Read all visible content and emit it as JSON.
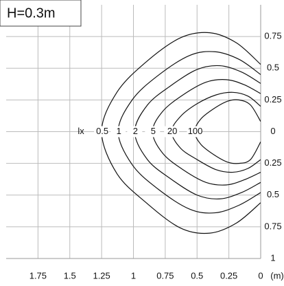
{
  "chart_data": {
    "type": "contour",
    "title": "H=0.3m",
    "unit_label": "lx",
    "x_unit_label": "(m)",
    "xlim": [
      2,
      0
    ],
    "ylim": [
      -1,
      1
    ],
    "xticks": [
      1.75,
      1.5,
      1.25,
      1,
      0.75,
      0.5,
      0.25,
      0
    ],
    "yticks": [
      {
        "value": -1,
        "label": "1"
      },
      {
        "value": -0.75,
        "label": "0.75"
      },
      {
        "value": -0.5,
        "label": "0.5"
      },
      {
        "value": -0.25,
        "label": "0.25"
      },
      0,
      0.25,
      0.5,
      0.75
    ],
    "grid": true,
    "color": "#111111",
    "series": [
      {
        "name": "0.5",
        "x": [
          0,
          0.19,
          0.4,
          0.63,
          0.9,
          1.13,
          1.25,
          1.13,
          0.9,
          0.63,
          0.4,
          0.19,
          0
        ],
        "y": [
          0.53,
          0.7,
          0.78,
          0.74,
          0.55,
          0.31,
          0,
          -0.33,
          -0.56,
          -0.76,
          -0.8,
          -0.72,
          -0.56
        ]
      },
      {
        "name": "1",
        "x": [
          0,
          0.17,
          0.36,
          0.56,
          0.81,
          1.01,
          1.12,
          1.01,
          0.81,
          0.56,
          0.36,
          0.17,
          0
        ],
        "y": [
          0.45,
          0.57,
          0.63,
          0.6,
          0.44,
          0.25,
          0,
          -0.26,
          -0.45,
          -0.61,
          -0.64,
          -0.58,
          -0.48
        ]
      },
      {
        "name": "2",
        "x": [
          0,
          0.15,
          0.32,
          0.5,
          0.71,
          0.89,
          0.99,
          0.89,
          0.71,
          0.5,
          0.32,
          0.15,
          0
        ],
        "y": [
          0.38,
          0.47,
          0.52,
          0.49,
          0.36,
          0.21,
          0,
          -0.22,
          -0.37,
          -0.5,
          -0.53,
          -0.48,
          -0.4
        ]
      },
      {
        "name": "5",
        "x": [
          0,
          0.13,
          0.27,
          0.43,
          0.61,
          0.77,
          0.85,
          0.77,
          0.61,
          0.43,
          0.27,
          0.13,
          0
        ],
        "y": [
          0.3,
          0.37,
          0.41,
          0.39,
          0.29,
          0.16,
          0,
          -0.17,
          -0.3,
          -0.4,
          -0.42,
          -0.38,
          -0.32
        ]
      },
      {
        "name": "20",
        "x": [
          0,
          0.1,
          0.22,
          0.35,
          0.5,
          0.63,
          0.7,
          0.63,
          0.5,
          0.35,
          0.22,
          0.1,
          0
        ],
        "y": [
          0.2,
          0.28,
          0.31,
          0.29,
          0.22,
          0.12,
          0,
          -0.13,
          -0.22,
          -0.3,
          -0.32,
          -0.29,
          -0.22
        ]
      },
      {
        "name": "100",
        "x": [
          0,
          0.08,
          0.17,
          0.26,
          0.37,
          0.47,
          0.52,
          0.47,
          0.37,
          0.26,
          0.17,
          0.08,
          0
        ],
        "y": [
          0.08,
          0.21,
          0.25,
          0.24,
          0.18,
          0.1,
          0,
          -0.1,
          -0.18,
          -0.24,
          -0.25,
          -0.22,
          -0.08
        ]
      }
    ]
  }
}
